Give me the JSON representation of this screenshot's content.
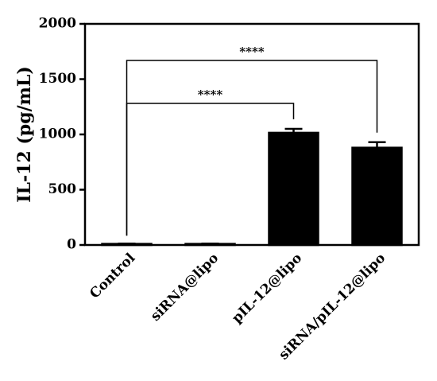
{
  "chart_data": {
    "type": "bar",
    "y_label": "IL-12 (pg/mL)",
    "categories": [
      "Control",
      "siRNA@lipo",
      "pIL-12@lipo",
      "siRNA/pIL-12@lipo"
    ],
    "values": [
      10,
      10,
      1015,
      880
    ],
    "errors": [
      3,
      3,
      35,
      50
    ],
    "colors": [
      "#1fe0b0",
      "#1fe0b0",
      "#1fe0b0",
      "#1fe0b0"
    ],
    "patterns": [
      "none",
      "none",
      "diagonal",
      "crosshatch"
    ],
    "ylim": [
      0,
      2000
    ],
    "yticks": [
      0,
      500,
      1000,
      1500,
      2000
    ],
    "comparisons": [
      {
        "label": "****",
        "groups": [
          "Control",
          "pIL-12@lipo"
        ]
      },
      {
        "label": "****",
        "groups": [
          "Control",
          "siRNA/pIL-12@lipo"
        ]
      }
    ]
  }
}
